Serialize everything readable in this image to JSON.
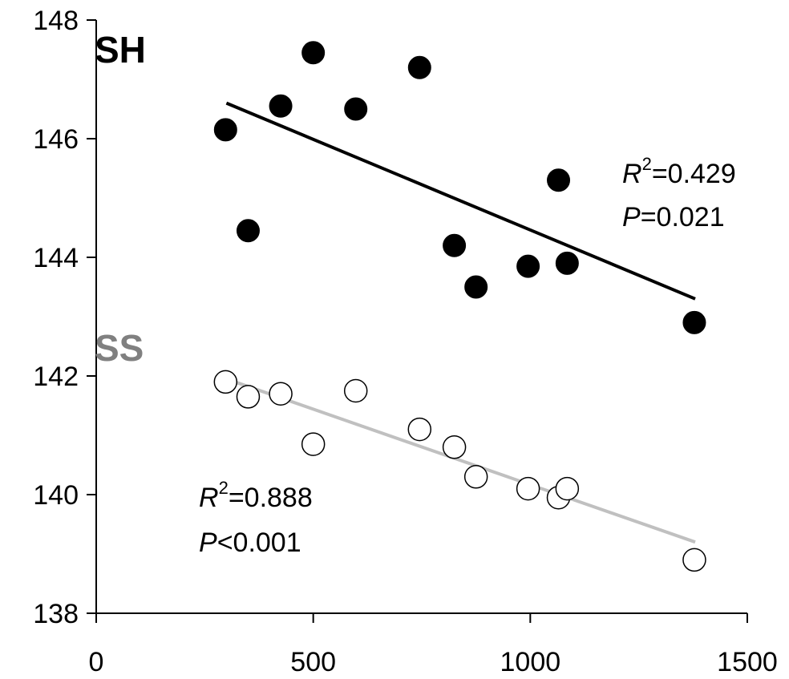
{
  "chart_data": {
    "type": "scatter",
    "xlim": [
      0,
      1500
    ],
    "ylim": [
      138,
      148
    ],
    "x_ticks": [
      0,
      500,
      1000,
      1500
    ],
    "y_ticks": [
      138,
      140,
      142,
      144,
      146,
      148
    ],
    "x_tick_labels": [
      "0",
      "500",
      "1000",
      "1500"
    ],
    "y_tick_labels": [
      "138",
      "140",
      "142",
      "144",
      "146",
      "148"
    ],
    "grid": false,
    "series": [
      {
        "name": "SH",
        "marker": "filled-circle",
        "color": "#000000",
        "points": [
          {
            "x": 298,
            "y": 146.15
          },
          {
            "x": 350,
            "y": 144.45
          },
          {
            "x": 425,
            "y": 146.55
          },
          {
            "x": 500,
            "y": 147.45
          },
          {
            "x": 598,
            "y": 146.5
          },
          {
            "x": 745,
            "y": 147.2
          },
          {
            "x": 825,
            "y": 144.2
          },
          {
            "x": 875,
            "y": 143.5
          },
          {
            "x": 995,
            "y": 143.85
          },
          {
            "x": 1065,
            "y": 145.3
          },
          {
            "x": 1085,
            "y": 143.9
          },
          {
            "x": 1378,
            "y": 142.9
          }
        ],
        "trendline": {
          "x": [
            300,
            1380
          ],
          "y": [
            146.6,
            143.3
          ],
          "color": "#000000"
        },
        "stats": {
          "r2_label": "R",
          "r2_sup": "2",
          "r2_value": "=0.429",
          "p_label": "P",
          "p_value": "=0.021"
        }
      },
      {
        "name": "SS",
        "marker": "open-circle",
        "color": "#808080",
        "points": [
          {
            "x": 298,
            "y": 141.9
          },
          {
            "x": 350,
            "y": 141.65
          },
          {
            "x": 425,
            "y": 141.7
          },
          {
            "x": 500,
            "y": 140.85
          },
          {
            "x": 598,
            "y": 141.75
          },
          {
            "x": 745,
            "y": 141.1
          },
          {
            "x": 825,
            "y": 140.8
          },
          {
            "x": 875,
            "y": 140.3
          },
          {
            "x": 995,
            "y": 140.1
          },
          {
            "x": 1065,
            "y": 139.95
          },
          {
            "x": 1085,
            "y": 140.1
          },
          {
            "x": 1378,
            "y": 138.9
          }
        ],
        "trendline": {
          "x": [
            300,
            1380
          ],
          "y": [
            141.95,
            139.2
          ],
          "color": "#c0c0c0"
        },
        "stats": {
          "r2_label": "R",
          "r2_sup": "2",
          "r2_value": "=0.888",
          "p_label": "P",
          "p_value": "<0.001"
        }
      }
    ]
  }
}
